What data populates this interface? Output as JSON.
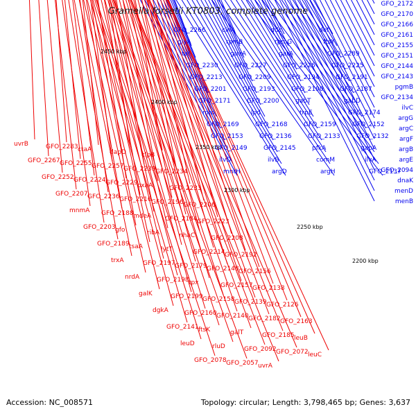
{
  "title": "Gramella forsetii KT0803, complete genome",
  "footer": {
    "accession": "Accession: NC_008571",
    "summary": "Topology: circular; Length: 3,798,465 bp; Genes: 3,637"
  },
  "colors": {
    "forward": "#0000ee",
    "reverse": "#ee0000",
    "backbone": "#888888",
    "rna": "#228b22"
  },
  "kbp_ticks": [
    "2450 kbp",
    "2400 kbp",
    "2350 kbp",
    "2300 kbp",
    "2250 kbp",
    "2200 kbp"
  ],
  "forward_labels": [
    "GFO_2172",
    "GFO_2170",
    "GFO_2166",
    "GFO_2161",
    "GFO_2155",
    "GFO_2151",
    "GFO_2144",
    "GFO_2143",
    "pgmB",
    "GFO_2134",
    "ilvC",
    "argG",
    "argC",
    "argF",
    "argB",
    "argE",
    "GFO_2094",
    "dnaK",
    "menD",
    "menB",
    "GFO_2266",
    "cinA",
    "ddc",
    "def",
    "glyA",
    "rpmB",
    "rpmG",
    "ftsY",
    "tal",
    "guaA",
    "gatA",
    "GFO_2289",
    "GFO_2230",
    "GFO_2227",
    "GFO_2226",
    "GFO_2225",
    "GFO_2213",
    "GFO_2209",
    "GFO_2194",
    "GFO_2191",
    "GFO_2201",
    "GFO_2193",
    "GFO_2190",
    "GFO_2187",
    "GFO_2171",
    "GFO_2200",
    "gabT",
    "gabD",
    "mro",
    "lpd",
    "trpE",
    "GFO_2174",
    "GFO_2169",
    "GFO_2168",
    "GFO_2159",
    "GFO_2152",
    "GFO_2153",
    "GFO_2136",
    "GFO_2133",
    "GFO_2132",
    "GFO_2149",
    "GFO_2145",
    "pfkA",
    "gapA",
    "ilvD",
    "ilvB",
    "comM",
    "ilvA",
    "mntH",
    "argD",
    "argH",
    "GFO_2137"
  ],
  "reverse_labels": [
    "uvrB",
    "GFO_2283",
    "ctaA",
    "dapD",
    "clpB",
    "GFO_2267",
    "GFO_2255",
    "GFO_2257",
    "GFO_2239",
    "GFO_2234",
    "GFO_2252",
    "GFO_2224",
    "GFO_2229",
    "oxaA",
    "GFO_2233",
    "GFO_2207",
    "GFO_2236",
    "GFO_2216",
    "GFO_2196",
    "GFO_2206",
    "mnmA",
    "GFO_2188",
    "mdeA",
    "GFO_2184",
    "GFO_2223",
    "GFO_2203",
    "gfo",
    "ribA",
    "nhaC",
    "GFO_2208",
    "GFO_2189",
    "tsaA",
    "lytT",
    "GFO_2214",
    "GFO_2192",
    "trxA",
    "GFO_2197",
    "GFO_2179",
    "GFO_2148",
    "GFO_2156",
    "nrdA",
    "GFO_2198",
    "tpx",
    "GFO_2157",
    "GFO_2138",
    "galK",
    "GFO_2199",
    "GFO_2158",
    "GFO_2139",
    "GFO_2126",
    "dgkA",
    "GFO_2160",
    "GFO_2140",
    "GFO_2182",
    "GFO_2163",
    "GFO_2141",
    "ftsK",
    "galT",
    "GFO_2185",
    "leuB",
    "leuD",
    "rluD",
    "GFO_2092",
    "GFO_2072",
    "leuC",
    "GFO_2078",
    "GFO_2057",
    "uvrA"
  ]
}
